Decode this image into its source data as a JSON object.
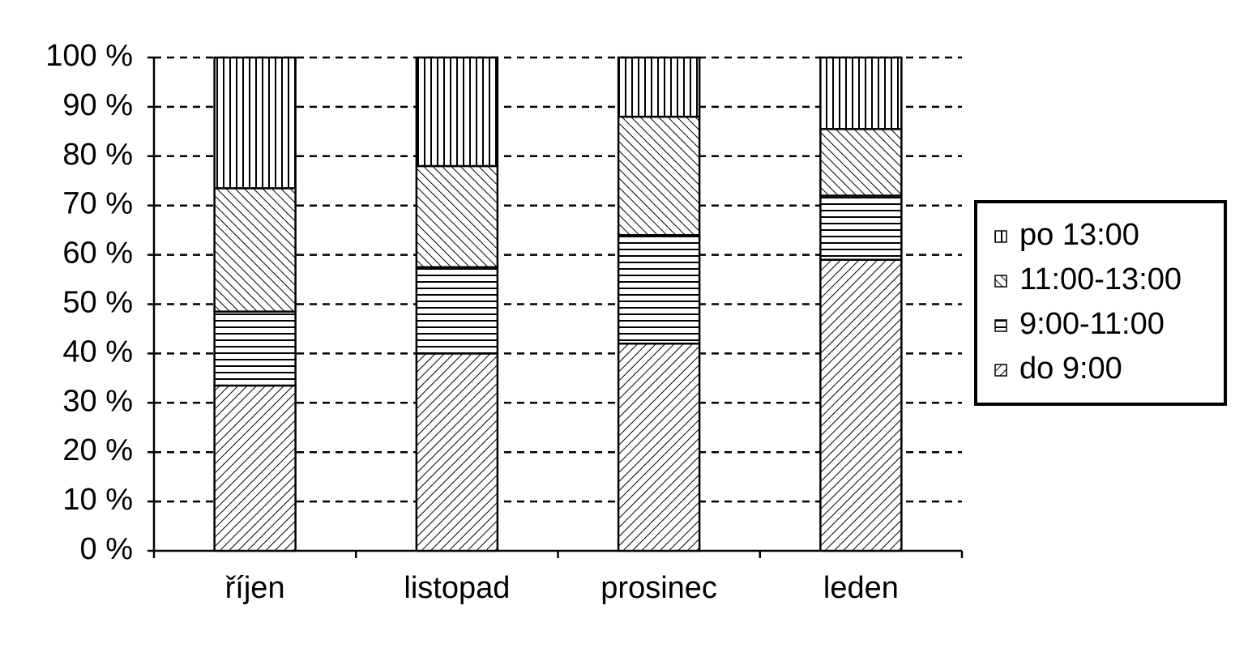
{
  "chart_data": {
    "type": "stacked_bar",
    "categories": [
      "říjen",
      "listopad",
      "prosinec",
      "leden"
    ],
    "series": [
      {
        "name": "do 9:00",
        "pattern": "diagonal-down",
        "color": "#000000",
        "values": [
          33.5,
          40,
          42,
          59
        ]
      },
      {
        "name": "9:00-11:00",
        "pattern": "horizontal",
        "color": "#000000",
        "values": [
          15,
          17.5,
          22,
          13
        ]
      },
      {
        "name": "11:00-13:00",
        "pattern": "diagonal-up",
        "color": "#000000",
        "values": [
          25,
          20.5,
          24,
          13.5
        ]
      },
      {
        "name": "po 13:00",
        "pattern": "vertical",
        "color": "#000000",
        "values": [
          26.5,
          22,
          12,
          14.5
        ]
      }
    ],
    "ylim": [
      0,
      100
    ],
    "yticks": [
      {
        "value": 0,
        "label": "0 %"
      },
      {
        "value": 10,
        "label": "10 %"
      },
      {
        "value": 20,
        "label": "20 %"
      },
      {
        "value": 30,
        "label": "30 %"
      },
      {
        "value": 40,
        "label": "40 %"
      },
      {
        "value": 50,
        "label": "50 %"
      },
      {
        "value": 60,
        "label": "60 %"
      },
      {
        "value": 70,
        "label": "70 %"
      },
      {
        "value": 80,
        "label": "80 %"
      },
      {
        "value": 90,
        "label": "90 %"
      },
      {
        "value": 100,
        "label": "100 %"
      }
    ],
    "grid": true,
    "legend": "right"
  }
}
